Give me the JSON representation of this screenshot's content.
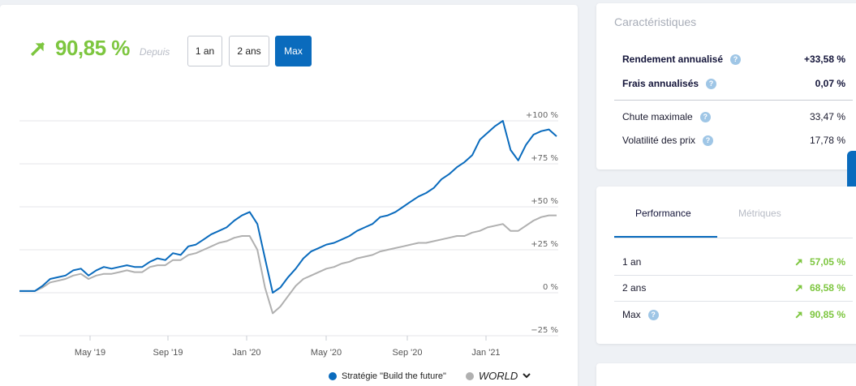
{
  "header": {
    "gain_value": "90,85 %",
    "since_label": "Depuis",
    "range_buttons": [
      {
        "label": "1 an",
        "active": false
      },
      {
        "label": "2 ans",
        "active": false
      },
      {
        "label": "Max",
        "active": true
      }
    ]
  },
  "chart_data": {
    "type": "line",
    "y_ticks": [
      "+100 %",
      "+75 %",
      "+50 %",
      "+25 %",
      "0 %",
      "−25 %"
    ],
    "y_tick_values": [
      100,
      75,
      50,
      25,
      0,
      -25
    ],
    "ylim": [
      -25,
      100
    ],
    "x_ticks": [
      "May '19",
      "Sep '19",
      "Jan '20",
      "May '20",
      "Sep '20",
      "Jan '21"
    ],
    "series": [
      {
        "name": "Stratégie \"Build the future\"",
        "color": "#0a6bbd",
        "values": [
          1,
          1,
          1,
          4,
          8,
          9,
          10,
          13,
          14,
          10,
          13,
          15,
          14,
          15,
          16,
          15,
          15,
          18,
          20,
          19,
          23,
          22,
          27,
          28,
          31,
          34,
          36,
          38,
          42,
          45,
          47,
          40,
          20,
          0,
          3,
          9,
          14,
          20,
          24,
          26,
          28,
          29,
          31,
          33,
          36,
          38,
          40,
          44,
          45,
          47,
          50,
          53,
          56,
          58,
          61,
          66,
          69,
          73,
          76,
          80,
          89,
          93,
          97,
          100,
          83,
          77,
          86,
          92,
          94,
          95,
          91
        ]
      },
      {
        "name": "WORLD",
        "color": "#b0b0b0",
        "values": [
          1,
          1,
          1,
          3,
          6,
          7,
          8,
          10,
          11,
          8,
          10,
          11,
          11,
          12,
          13,
          12,
          12,
          15,
          16,
          16,
          19,
          19,
          22,
          23,
          25,
          27,
          29,
          30,
          32,
          33,
          33,
          25,
          3,
          -12,
          -8,
          -2,
          4,
          8,
          10,
          12,
          14,
          15,
          17,
          18,
          20,
          21,
          22,
          24,
          25,
          26,
          27,
          28,
          29,
          29,
          30,
          31,
          32,
          33,
          33,
          35,
          36,
          38,
          39,
          40,
          36,
          36,
          39,
          42,
          44,
          45,
          45
        ]
      }
    ]
  },
  "legend": {
    "strategy": "Stratégie \"Build the future\"",
    "world": "WORLD"
  },
  "stats": {
    "title": "Caractéristiques",
    "rows": [
      {
        "label": "Rendement annualisé",
        "value": "+33,58 %"
      },
      {
        "label": "Frais annualisés",
        "value": "0,07 %"
      },
      {
        "label": "Chute maximale",
        "value": "33,47 %"
      },
      {
        "label": "Volatilité des prix",
        "value": "17,78 %"
      }
    ]
  },
  "perf": {
    "tabs": [
      "Performance",
      "Métriques"
    ],
    "rows": [
      {
        "label": "1 an",
        "value": "57,05 %"
      },
      {
        "label": "2 ans",
        "value": "68,58 %"
      },
      {
        "label": "Max",
        "value": "90,85 %"
      }
    ]
  },
  "colors": {
    "accent": "#0a6bbd",
    "positive": "#7dc63f",
    "benchmark": "#b0b0b0"
  }
}
